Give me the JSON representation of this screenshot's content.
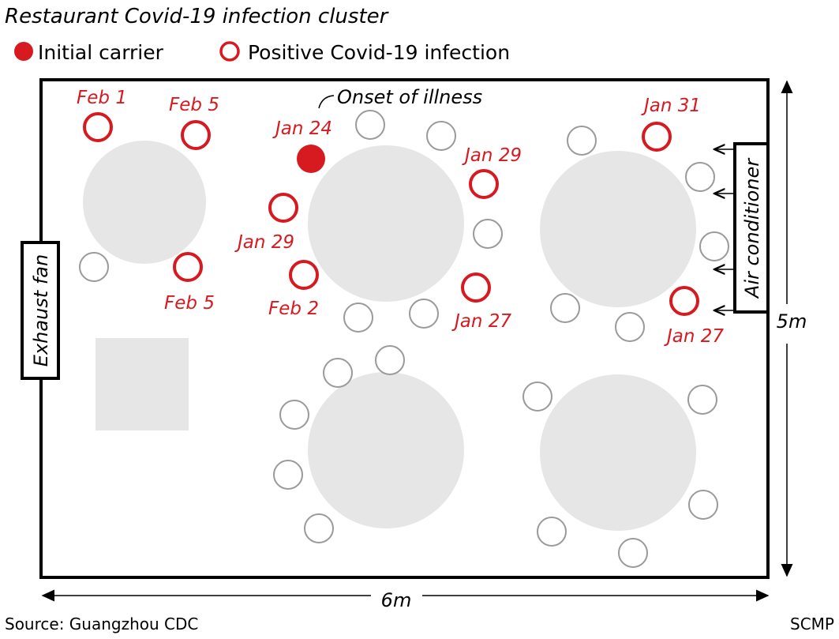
{
  "title": "Restaurant Covid-19 infection cluster",
  "legend": {
    "initial_carrier": "Initial carrier",
    "positive": "Positive Covid-19 infection"
  },
  "colors": {
    "infection": "#d71920",
    "table": "#e6e6e6",
    "chair": "#9a9a9a"
  },
  "labels": {
    "exhaust_fan": "Exhaust fan",
    "air_conditioner": "Air conditioner",
    "onset": "Onset of illness",
    "width": "6m",
    "height": "5m"
  },
  "cases": [
    "Feb 1",
    "Feb 5",
    "Feb 5",
    "Jan 24",
    "Jan 29",
    "Feb 2",
    "Jan 29",
    "Jan 27",
    "Jan 31",
    "Jan 27"
  ],
  "footer": {
    "source": "Source: Guangzhou CDC",
    "credit": "SCMP"
  }
}
